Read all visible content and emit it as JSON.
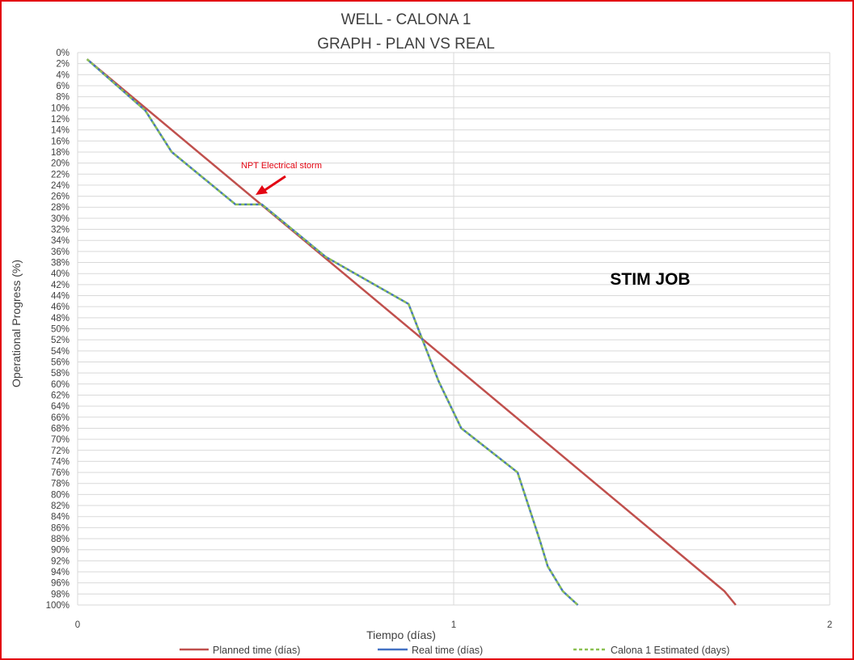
{
  "chart_data": {
    "type": "line",
    "title": "WELL -  CALONA 1",
    "subtitle": "GRAPH  - PLAN VS REAL",
    "xlabel": "Tiempo (días)",
    "ylabel": "Operational Progress (%)",
    "xlim": [
      0,
      2
    ],
    "ylim": [
      0,
      100
    ],
    "y_reversed": true,
    "x_ticks": [
      "0",
      "1",
      "2"
    ],
    "y_ticks": [
      "0%",
      "2%",
      "4%",
      "6%",
      "8%",
      "10%",
      "12%",
      "14%",
      "16%",
      "18%",
      "20%",
      "22%",
      "24%",
      "26%",
      "28%",
      "30%",
      "32%",
      "34%",
      "36%",
      "38%",
      "40%",
      "42%",
      "44%",
      "46%",
      "48%",
      "50%",
      "52%",
      "54%",
      "56%",
      "58%",
      "60%",
      "62%",
      "64%",
      "66%",
      "68%",
      "70%",
      "72%",
      "74%",
      "76%",
      "78%",
      "80%",
      "82%",
      "84%",
      "86%",
      "88%",
      "90%",
      "92%",
      "94%",
      "96%",
      "98%",
      "100%"
    ],
    "grid": true,
    "legend_position": "bottom",
    "series": [
      {
        "name": "Planned time (días)",
        "color": "#c0504d",
        "style": "solid",
        "x": [
          0.025,
          1.72,
          1.75
        ],
        "y": [
          1.2,
          97.5,
          100
        ]
      },
      {
        "name": "Real time (días)",
        "color": "#4472c4",
        "style": "solid",
        "x": [
          0.025,
          0.18,
          0.25,
          0.42,
          0.49,
          0.66,
          0.88,
          0.96,
          1.02,
          1.17,
          1.23,
          1.25,
          1.29,
          1.33
        ],
        "y": [
          1.2,
          10.5,
          18,
          27.5,
          27.5,
          37,
          45.5,
          59.5,
          68,
          76,
          88.5,
          93,
          97.5,
          100
        ]
      },
      {
        "name": "Calona 1 Estimated (days)",
        "color": "#8cc152",
        "style": "dashed",
        "x": [
          0.025,
          0.18,
          0.25,
          0.42,
          0.49,
          0.66,
          0.88,
          0.96,
          1.02,
          1.17,
          1.23,
          1.25,
          1.29,
          1.33
        ],
        "y": [
          1.2,
          10.5,
          18,
          27.5,
          27.5,
          37,
          45.5,
          59.5,
          68,
          76,
          88.5,
          93,
          97.5,
          100
        ]
      }
    ],
    "annotations": [
      {
        "text": "NPT Electrical storm",
        "x": 0.46,
        "y": 27,
        "color": "#e30613"
      },
      {
        "text": "STIM JOB",
        "bold": true
      }
    ]
  }
}
